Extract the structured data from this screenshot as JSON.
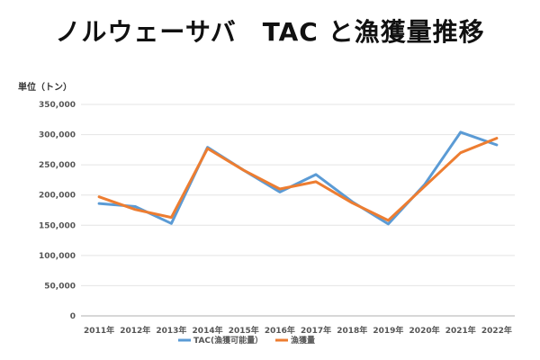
{
  "header": {
    "title": "ノルウェーサバ　TAC と漁獲量推移",
    "unit_label": "単位（トン）"
  },
  "chart_data": {
    "type": "line",
    "title": "ノルウェーサバ　TAC と漁獲量推移",
    "ylabel": "単位（トン）",
    "xlabel": "",
    "ylim": [
      0,
      350000
    ],
    "y_ticks": [
      0,
      50000,
      100000,
      150000,
      200000,
      250000,
      300000,
      350000
    ],
    "y_tick_labels": [
      "0",
      "50,000",
      "100,000",
      "150,000",
      "200,000",
      "250,000",
      "300,000",
      "350,000"
    ],
    "categories": [
      "2011年",
      "2012年",
      "2013年",
      "2014年",
      "2015年",
      "2016年",
      "2017年",
      "2018年",
      "2019年",
      "2020年",
      "2021年",
      "2022年"
    ],
    "grid": true,
    "legend_position": "bottom",
    "series": [
      {
        "name": "TAC(漁獲可能量）",
        "color": "#5b9bd5",
        "values": [
          186000,
          181000,
          153000,
          279000,
          241000,
          205000,
          234000,
          189000,
          152000,
          217000,
          304000,
          283000
        ]
      },
      {
        "name": "漁獲量",
        "color": "#ed7d31",
        "values": [
          197000,
          176000,
          163000,
          277000,
          241000,
          210000,
          222000,
          187000,
          158000,
          214000,
          270000,
          294000
        ]
      }
    ]
  }
}
